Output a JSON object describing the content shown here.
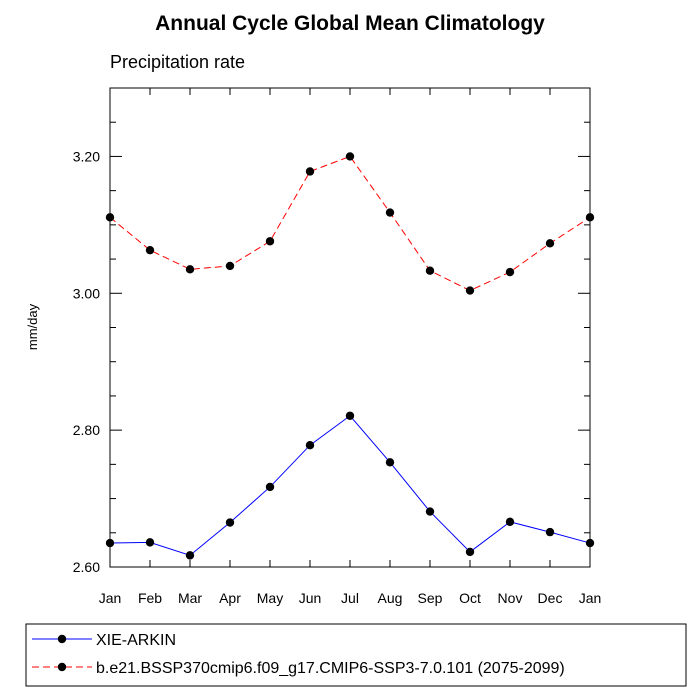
{
  "chart_data": {
    "type": "line",
    "title": "Annual Cycle Global Mean Climatology",
    "subtitle": "Precipitation rate",
    "xlabel": "",
    "ylabel": "mm/day",
    "categories": [
      "Jan",
      "Feb",
      "Mar",
      "Apr",
      "May",
      "Jun",
      "Jul",
      "Aug",
      "Sep",
      "Oct",
      "Nov",
      "Dec",
      "Jan"
    ],
    "ylim": [
      2.6,
      3.3
    ],
    "yticks": [
      2.6,
      2.8,
      3.0,
      3.2
    ],
    "ytick_labels": [
      "2.60",
      "2.80",
      "3.00",
      "3.20"
    ],
    "grid": false,
    "legend_position": "bottom",
    "series": [
      {
        "name": "XIE-ARKIN",
        "color": "#0000ff",
        "dash": "solid",
        "marker": "filled-circle",
        "values": [
          2.635,
          2.636,
          2.617,
          2.665,
          2.717,
          2.778,
          2.821,
          2.753,
          2.681,
          2.622,
          2.666,
          2.651,
          2.635
        ]
      },
      {
        "name": "b.e21.BSSP370cmip6.f09_g17.CMIP6-SSP3-7.0.101 (2075-2099)",
        "color": "#ff0000",
        "dash": "dashed",
        "marker": "filled-circle",
        "values": [
          3.111,
          3.063,
          3.035,
          3.04,
          3.076,
          3.178,
          3.2,
          3.118,
          3.033,
          3.004,
          3.031,
          3.073,
          3.111
        ]
      }
    ]
  }
}
